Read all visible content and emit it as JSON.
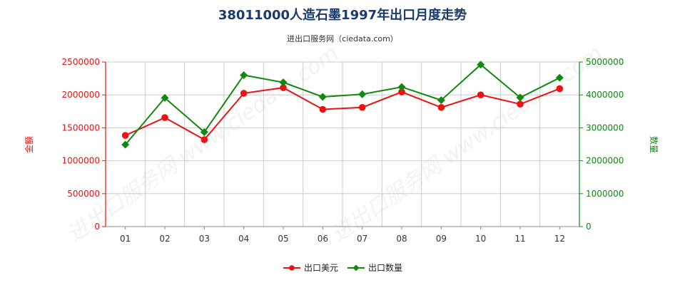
{
  "title": "38011000人造石墨1997年出口月度走势",
  "subtitle": "进出口服务网（ciedata.com）",
  "watermark": "进出口服务网 www.ciedata.com",
  "chart_data": {
    "type": "line",
    "categories": [
      "01",
      "02",
      "03",
      "04",
      "05",
      "06",
      "07",
      "08",
      "09",
      "10",
      "11",
      "12"
    ],
    "series": [
      {
        "name": "出口美元",
        "axis": "left",
        "color": "#ee1111",
        "marker": "circle",
        "values": [
          1385000,
          1655000,
          1320000,
          2025000,
          2110000,
          1780000,
          1810000,
          2045000,
          1810000,
          2000000,
          1860000,
          2095000
        ]
      },
      {
        "name": "出口数量",
        "axis": "right",
        "color": "#118811",
        "marker": "diamond",
        "values": [
          2490000,
          3910000,
          2870000,
          4600000,
          4380000,
          3940000,
          4020000,
          4240000,
          3840000,
          4920000,
          3920000,
          4520000
        ]
      }
    ],
    "y_left": {
      "label": "金额",
      "range": [
        0,
        2500000
      ],
      "ticks": [
        "0",
        "500000",
        "1000000",
        "1500000",
        "2000000",
        "2500000"
      ],
      "color": "#ee1111"
    },
    "y_right": {
      "label": "数量",
      "range": [
        0,
        5000000
      ],
      "ticks": [
        "0",
        "1000000",
        "2000000",
        "3000000",
        "4000000",
        "5000000"
      ],
      "color": "#118811"
    },
    "grid": true,
    "legend": "bottom-center"
  }
}
